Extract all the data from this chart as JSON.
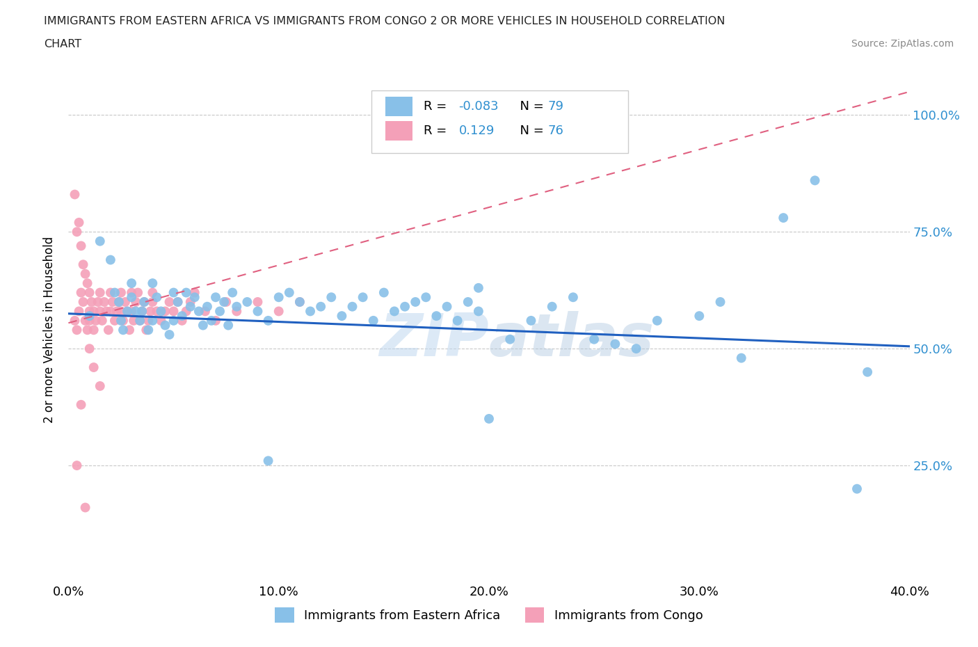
{
  "title_line1": "IMMIGRANTS FROM EASTERN AFRICA VS IMMIGRANTS FROM CONGO 2 OR MORE VEHICLES IN HOUSEHOLD CORRELATION",
  "title_line2": "CHART",
  "source": "Source: ZipAtlas.com",
  "ylabel": "2 or more Vehicles in Household",
  "xlim": [
    0.0,
    0.4
  ],
  "ylim": [
    0.0,
    1.08
  ],
  "xtick_labels": [
    "0.0%",
    "10.0%",
    "20.0%",
    "30.0%",
    "40.0%"
  ],
  "xtick_values": [
    0.0,
    0.1,
    0.2,
    0.3,
    0.4
  ],
  "ytick_labels": [
    "25.0%",
    "50.0%",
    "75.0%",
    "100.0%"
  ],
  "ytick_values": [
    0.25,
    0.5,
    0.75,
    1.0
  ],
  "blue_color": "#88C0E8",
  "pink_color": "#F4A0B8",
  "blue_line_color": "#2060C0",
  "pink_line_color": "#E06080",
  "R_blue": -0.083,
  "N_blue": 79,
  "R_pink": 0.129,
  "N_pink": 76,
  "legend_label_blue": "Immigrants from Eastern Africa",
  "legend_label_pink": "Immigrants from Congo",
  "watermark": "ZIPAtlas",
  "blue_scatter_x": [
    0.01,
    0.015,
    0.02,
    0.022,
    0.024,
    0.025,
    0.026,
    0.028,
    0.03,
    0.03,
    0.032,
    0.034,
    0.035,
    0.036,
    0.038,
    0.04,
    0.04,
    0.042,
    0.044,
    0.046,
    0.048,
    0.05,
    0.05,
    0.052,
    0.054,
    0.056,
    0.058,
    0.06,
    0.062,
    0.064,
    0.066,
    0.068,
    0.07,
    0.072,
    0.074,
    0.076,
    0.078,
    0.08,
    0.085,
    0.09,
    0.095,
    0.1,
    0.105,
    0.11,
    0.115,
    0.12,
    0.125,
    0.13,
    0.135,
    0.14,
    0.145,
    0.15,
    0.155,
    0.16,
    0.165,
    0.17,
    0.175,
    0.18,
    0.185,
    0.19,
    0.195,
    0.2,
    0.21,
    0.22,
    0.23,
    0.24,
    0.25,
    0.26,
    0.27,
    0.28,
    0.3,
    0.31,
    0.32,
    0.34,
    0.355,
    0.375,
    0.38,
    0.195,
    0.095
  ],
  "blue_scatter_y": [
    0.57,
    0.73,
    0.69,
    0.62,
    0.6,
    0.56,
    0.54,
    0.58,
    0.64,
    0.61,
    0.58,
    0.56,
    0.58,
    0.6,
    0.54,
    0.64,
    0.56,
    0.61,
    0.58,
    0.55,
    0.53,
    0.62,
    0.56,
    0.6,
    0.57,
    0.62,
    0.59,
    0.61,
    0.58,
    0.55,
    0.59,
    0.56,
    0.61,
    0.58,
    0.6,
    0.55,
    0.62,
    0.59,
    0.6,
    0.58,
    0.56,
    0.61,
    0.62,
    0.6,
    0.58,
    0.59,
    0.61,
    0.57,
    0.59,
    0.61,
    0.56,
    0.62,
    0.58,
    0.59,
    0.6,
    0.61,
    0.57,
    0.59,
    0.56,
    0.6,
    0.58,
    0.35,
    0.52,
    0.56,
    0.59,
    0.61,
    0.52,
    0.51,
    0.5,
    0.56,
    0.57,
    0.6,
    0.48,
    0.78,
    0.86,
    0.2,
    0.45,
    0.63,
    0.26
  ],
  "pink_scatter_x": [
    0.003,
    0.004,
    0.005,
    0.006,
    0.007,
    0.008,
    0.009,
    0.01,
    0.01,
    0.01,
    0.011,
    0.012,
    0.012,
    0.013,
    0.014,
    0.015,
    0.015,
    0.016,
    0.017,
    0.018,
    0.019,
    0.02,
    0.02,
    0.021,
    0.022,
    0.023,
    0.024,
    0.025,
    0.025,
    0.026,
    0.027,
    0.028,
    0.029,
    0.03,
    0.03,
    0.031,
    0.032,
    0.033,
    0.034,
    0.035,
    0.036,
    0.037,
    0.038,
    0.039,
    0.04,
    0.04,
    0.042,
    0.044,
    0.046,
    0.048,
    0.05,
    0.052,
    0.054,
    0.056,
    0.058,
    0.06,
    0.065,
    0.07,
    0.075,
    0.08,
    0.09,
    0.1,
    0.11,
    0.004,
    0.005,
    0.006,
    0.007,
    0.008,
    0.009,
    0.01,
    0.012,
    0.015,
    0.003,
    0.004,
    0.006,
    0.008
  ],
  "pink_scatter_y": [
    0.56,
    0.54,
    0.58,
    0.62,
    0.6,
    0.56,
    0.54,
    0.58,
    0.62,
    0.56,
    0.6,
    0.58,
    0.54,
    0.56,
    0.6,
    0.58,
    0.62,
    0.56,
    0.6,
    0.58,
    0.54,
    0.62,
    0.58,
    0.6,
    0.56,
    0.58,
    0.6,
    0.58,
    0.62,
    0.56,
    0.6,
    0.58,
    0.54,
    0.62,
    0.58,
    0.56,
    0.6,
    0.62,
    0.56,
    0.58,
    0.6,
    0.54,
    0.56,
    0.58,
    0.6,
    0.62,
    0.58,
    0.56,
    0.58,
    0.6,
    0.58,
    0.6,
    0.56,
    0.58,
    0.6,
    0.62,
    0.58,
    0.56,
    0.6,
    0.58,
    0.6,
    0.58,
    0.6,
    0.75,
    0.77,
    0.72,
    0.68,
    0.66,
    0.64,
    0.5,
    0.46,
    0.42,
    0.83,
    0.25,
    0.38,
    0.16
  ]
}
